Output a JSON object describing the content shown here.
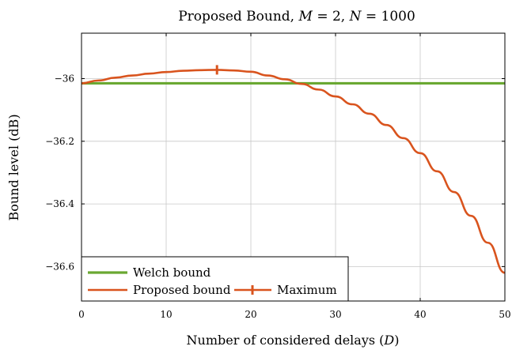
{
  "chart_data": {
    "type": "line",
    "title": "Proposed Bound, M = 2, N = 1000",
    "title_parts": [
      "Proposed Bound, ",
      "M",
      " = 2, ",
      "N",
      " = 1000"
    ],
    "xlabel_parts": [
      "Number of considered delays (",
      "D",
      ")"
    ],
    "xlabel": "Number of considered delays (D)",
    "ylabel": "Bound level (dB)",
    "xlim": [
      0,
      50
    ],
    "ylim": [
      -36.71,
      -35.855
    ],
    "xticks": [
      0,
      10,
      20,
      30,
      40,
      50
    ],
    "xtick_labels": [
      "0",
      "10",
      "20",
      "30",
      "40",
      "50"
    ],
    "yticks": [
      -36,
      -36.2,
      -36.4,
      -36.6
    ],
    "ytick_labels": [
      "−36",
      "−36.2",
      "−36.4",
      "−36.6"
    ],
    "grid": true,
    "legend_position": "bottom-left",
    "series": [
      {
        "name": "Welch bound",
        "color": "#6aa832",
        "x": [
          0,
          50
        ],
        "y": [
          -36.015,
          -36.015
        ]
      },
      {
        "name": "Proposed bound",
        "color": "#d9541e",
        "x": [
          0,
          2,
          4,
          6,
          8,
          10,
          12,
          14,
          16,
          18,
          20,
          22,
          24,
          26,
          28,
          30,
          32,
          34,
          36,
          38,
          40,
          42,
          44,
          46,
          48,
          50
        ],
        "y": [
          -36.015,
          -36.006,
          -35.997,
          -35.99,
          -35.984,
          -35.979,
          -35.975,
          -35.973,
          -35.972,
          -35.974,
          -35.978,
          -35.99,
          -36.002,
          -36.017,
          -36.035,
          -36.057,
          -36.082,
          -36.112,
          -36.148,
          -36.19,
          -36.238,
          -36.296,
          -36.362,
          -36.438,
          -36.524,
          -36.62
        ]
      },
      {
        "name": "Maximum",
        "color": "#d9541e",
        "x": [
          16
        ],
        "y": [
          -35.972
        ]
      }
    ]
  }
}
